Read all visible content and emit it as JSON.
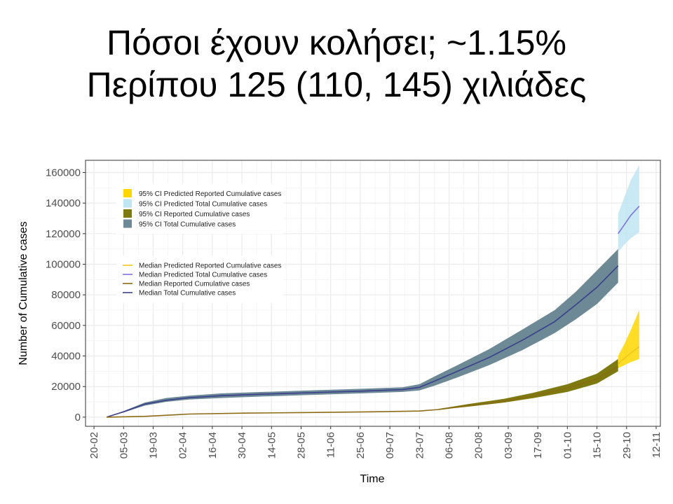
{
  "title": {
    "line1": "Πόσοι έχουν κολήσει;  ~1.15%",
    "line2": "Περίπου 125 (110, 145) χιλιάδες"
  },
  "colors": {
    "ci_predicted_reported": "#ffd700",
    "ci_predicted_total": "#bfe6f2",
    "ci_reported": "#7d7a10",
    "ci_total": "#6d8996",
    "median_predicted_reported": "#f0c41c",
    "median_predicted_total": "#7e72e0",
    "median_reported": "#8b6b14",
    "median_total": "#3b3f8c",
    "grid": "#ebebeb",
    "panel_border": "#333333"
  },
  "chart_data": {
    "type": "area",
    "xlabel": "Time",
    "ylabel": "Number of Cumulative cases",
    "x_ticks": [
      "20-02",
      "05-03",
      "19-03",
      "02-04",
      "16-04",
      "30-04",
      "14-05",
      "28-05",
      "11-06",
      "25-06",
      "09-07",
      "23-07",
      "06-08",
      "20-08",
      "03-09",
      "17-09",
      "01-10",
      "15-10",
      "29-10",
      "12-11"
    ],
    "y_ticks": [
      0,
      20000,
      40000,
      60000,
      80000,
      100000,
      120000,
      140000,
      160000
    ],
    "xlim": [
      "2020-02-16",
      "2020-11-14"
    ],
    "ylim": [
      -6000,
      168000
    ],
    "grid": true,
    "legend_position": "top-left",
    "legend_ci": [
      "95% CI Predicted Reported Cumulative cases",
      "95% CI Predicted Total Cumulative cases",
      "95% CI Reported Cumulative cases",
      "95% CI Total Cumulative cases"
    ],
    "legend_median": [
      "Median Predicted Reported Cumulative cases",
      "Median Predicted Total Cumulative cases",
      "Median Reported Cumulative cases",
      "Median Total Cumulative cases"
    ],
    "series": [
      {
        "name": "95% CI Total Cumulative cases",
        "kind": "band",
        "x": [
          "2020-02-26",
          "2020-03-05",
          "2020-03-15",
          "2020-03-25",
          "2020-04-05",
          "2020-04-20",
          "2020-05-10",
          "2020-06-01",
          "2020-06-25",
          "2020-07-15",
          "2020-07-23",
          "2020-07-30",
          "2020-08-10",
          "2020-08-25",
          "2020-09-10",
          "2020-09-25",
          "2020-10-05",
          "2020-10-15",
          "2020-10-25"
        ],
        "lower": [
          0,
          3000,
          7500,
          10000,
          11500,
          12500,
          13500,
          14500,
          15500,
          16500,
          17500,
          20500,
          26000,
          34000,
          44000,
          55000,
          64000,
          74000,
          88000
        ],
        "upper": [
          0,
          4000,
          9500,
          12500,
          14000,
          15500,
          16500,
          17500,
          18500,
          19500,
          21500,
          26500,
          34000,
          44500,
          57500,
          70000,
          82000,
          96000,
          110000
        ]
      },
      {
        "name": "95% CI Predicted Total Cumulative cases",
        "kind": "band",
        "x": [
          "2020-10-25",
          "2020-10-28",
          "2020-10-31",
          "2020-11-04"
        ],
        "lower": [
          108000,
          113000,
          117000,
          121000
        ],
        "upper": [
          133000,
          144000,
          155000,
          165000
        ]
      },
      {
        "name": "95% CI Reported Cumulative cases",
        "kind": "band",
        "x": [
          "2020-08-01",
          "2020-08-15",
          "2020-09-01",
          "2020-09-15",
          "2020-10-01",
          "2020-10-15",
          "2020-10-25"
        ],
        "lower": [
          4800,
          6800,
          9500,
          12500,
          16500,
          22000,
          30000
        ],
        "upper": [
          5400,
          8500,
          12000,
          16000,
          21500,
          28500,
          38000
        ]
      },
      {
        "name": "95% CI Predicted Reported Cumulative cases",
        "kind": "band",
        "x": [
          "2020-10-25",
          "2020-10-28",
          "2020-10-31",
          "2020-11-04"
        ],
        "lower": [
          32000,
          34000,
          36000,
          38000
        ],
        "upper": [
          40000,
          48000,
          57000,
          70000
        ]
      },
      {
        "name": "Median Total Cumulative cases",
        "kind": "line",
        "x": [
          "2020-02-26",
          "2020-03-05",
          "2020-03-15",
          "2020-03-25",
          "2020-04-05",
          "2020-04-20",
          "2020-05-10",
          "2020-06-01",
          "2020-06-25",
          "2020-07-15",
          "2020-07-23",
          "2020-07-30",
          "2020-08-10",
          "2020-08-25",
          "2020-09-10",
          "2020-09-25",
          "2020-10-05",
          "2020-10-15",
          "2020-10-25"
        ],
        "values": [
          0,
          3500,
          8500,
          11000,
          12700,
          14000,
          15000,
          16000,
          17000,
          18000,
          19500,
          23500,
          30000,
          39000,
          50500,
          62500,
          73500,
          85000,
          99000
        ]
      },
      {
        "name": "Median Predicted Total Cumulative cases",
        "kind": "line",
        "x": [
          "2020-10-25",
          "2020-10-28",
          "2020-10-31",
          "2020-11-04"
        ],
        "values": [
          120000,
          126000,
          132000,
          138000
        ]
      },
      {
        "name": "Median Reported Cumulative cases",
        "kind": "line",
        "x": [
          "2020-02-26",
          "2020-03-15",
          "2020-04-05",
          "2020-05-01",
          "2020-06-01",
          "2020-07-01",
          "2020-07-23",
          "2020-08-01",
          "2020-08-15",
          "2020-09-01",
          "2020-09-15",
          "2020-10-01",
          "2020-10-15",
          "2020-10-25"
        ],
        "values": [
          0,
          500,
          2000,
          2600,
          3000,
          3500,
          4000,
          5000,
          7500,
          10500,
          14000,
          19000,
          25000,
          33000
        ]
      },
      {
        "name": "Median Predicted Reported Cumulative cases",
        "kind": "line",
        "x": [
          "2020-10-25",
          "2020-10-28",
          "2020-10-31",
          "2020-11-04"
        ],
        "values": [
          35000,
          38500,
          42000,
          46000
        ]
      }
    ]
  }
}
